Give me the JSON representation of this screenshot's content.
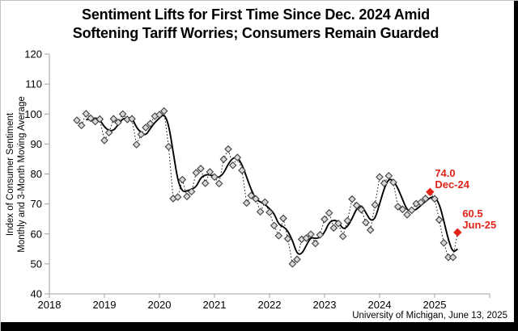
{
  "title": {
    "line1": "Sentiment Lifts for First Time Since Dec. 2024 Amid",
    "line2": "Softening Tariff Worries; Consumers Remain Guarded"
  },
  "y_axis": {
    "title_line1": "Index of Consumer Sentiment",
    "title_line2": "Monthly and 3-Month Moving Average",
    "ticks": [
      40,
      50,
      60,
      70,
      80,
      90,
      100,
      110,
      120
    ],
    "min": 40,
    "max": 120
  },
  "x_axis": {
    "tick_years": [
      "2018",
      "2019",
      "2020",
      "2021",
      "2022",
      "2023",
      "2024",
      "2025"
    ]
  },
  "attribution": "University of Michigan, June 13, 2025",
  "colors": {
    "accent_red": "#e2231a",
    "marker_fill": "#d9d9d9",
    "marker_stroke": "#3f3f3f",
    "line_black": "#000000",
    "axis_gray": "#a0a0a0"
  },
  "chart_data": {
    "type": "line",
    "title": "Sentiment Lifts for First Time Since Dec. 2024 Amid Softening Tariff Worries; Consumers Remain Guarded",
    "ylabel": "Index of Consumer Sentiment, Monthly and 3-Month Moving Average",
    "ylim": [
      40,
      120
    ],
    "x_start": {
      "year": 2018,
      "month": 7
    },
    "x_end": {
      "year": 2025,
      "month": 6
    },
    "series_monthly_name": "Monthly (dotted, diamond markers)",
    "series_ma_name": "3-Month Moving Average (solid, computed as trailing 3-month mean)",
    "values": [
      97.9,
      96.2,
      100.1,
      98.6,
      97.5,
      98.3,
      91.2,
      93.8,
      98.4,
      97.2,
      100.0,
      98.2,
      98.4,
      89.8,
      93.2,
      95.5,
      96.8,
      99.3,
      99.8,
      101.0,
      89.1,
      71.8,
      72.3,
      78.1,
      72.5,
      74.1,
      80.4,
      81.8,
      76.9,
      80.7,
      79.0,
      76.8,
      84.9,
      88.3,
      82.9,
      85.5,
      81.2,
      70.3,
      72.8,
      71.7,
      67.4,
      70.6,
      67.2,
      62.8,
      59.4,
      65.2,
      58.4,
      50.0,
      51.5,
      58.2,
      58.6,
      59.9,
      56.8,
      59.7,
      64.9,
      67.0,
      62.0,
      63.5,
      59.2,
      64.4,
      71.6,
      69.5,
      68.1,
      63.8,
      61.3,
      69.7,
      79.0,
      76.9,
      79.4,
      77.2,
      69.1,
      68.2,
      66.4,
      67.9,
      70.1,
      70.5,
      71.8,
      74.0,
      71.7,
      64.7,
      57.0,
      52.2,
      52.2,
      60.5
    ],
    "annotations": [
      {
        "index": 77,
        "value": 74.0,
        "value_label": "74.0",
        "date_label": "Dec-24"
      },
      {
        "index": 83,
        "value": 60.5,
        "value_label": "60.5",
        "date_label": "Jun-25"
      }
    ]
  }
}
